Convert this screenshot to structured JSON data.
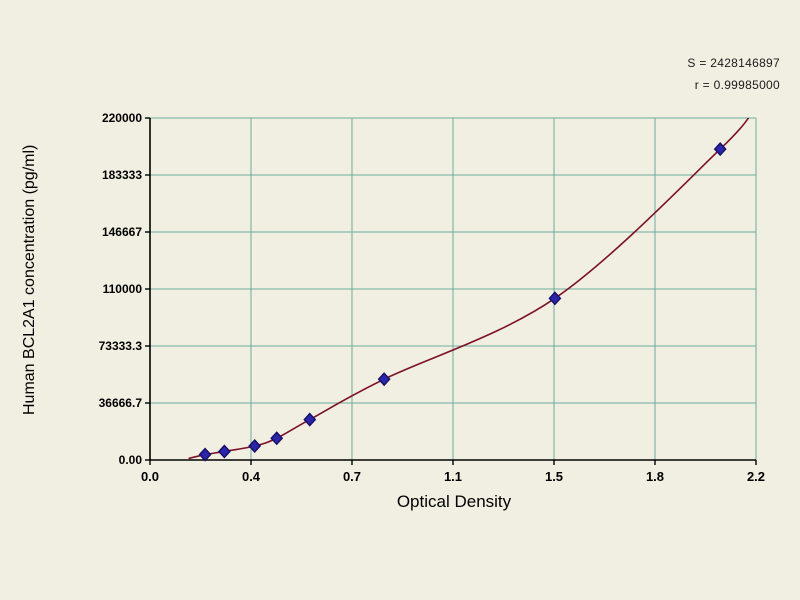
{
  "stats": {
    "line1": "S = 2428146897",
    "line2": "r = 0.99985000"
  },
  "chart_data": {
    "type": "scatter",
    "title": "",
    "xlabel": "Optical Density",
    "ylabel": "Human BCL2A1 concentration (pg/ml)",
    "xlim": [
      0,
      2.2
    ],
    "ylim": [
      0,
      220000
    ],
    "grid": true,
    "legend": "none",
    "x_ticks": [
      {
        "v": 0.0,
        "label": "0.0"
      },
      {
        "v": 0.3667,
        "label": "0.4"
      },
      {
        "v": 0.7333,
        "label": "0.7"
      },
      {
        "v": 1.1,
        "label": "1.1"
      },
      {
        "v": 1.4667,
        "label": "1.5"
      },
      {
        "v": 1.8333,
        "label": "1.8"
      },
      {
        "v": 2.2,
        "label": "2.2"
      }
    ],
    "y_ticks": [
      {
        "v": 0,
        "label": "0.00"
      },
      {
        "v": 36666.7,
        "label": "36666.7"
      },
      {
        "v": 73333.3,
        "label": "73333.3"
      },
      {
        "v": 110000,
        "label": "110000"
      },
      {
        "v": 146667,
        "label": "146667"
      },
      {
        "v": 183333,
        "label": "183333"
      },
      {
        "v": 220000,
        "label": "220000"
      }
    ],
    "points": [
      {
        "x": 0.2,
        "y": 3500
      },
      {
        "x": 0.27,
        "y": 5500
      },
      {
        "x": 0.38,
        "y": 9000
      },
      {
        "x": 0.46,
        "y": 14000
      },
      {
        "x": 0.58,
        "y": 26000
      },
      {
        "x": 0.85,
        "y": 52000
      },
      {
        "x": 1.47,
        "y": 104000
      },
      {
        "x": 2.07,
        "y": 200000
      }
    ],
    "curve_start": {
      "x": 0.14,
      "y": 1000
    },
    "curve_end": {
      "x": 2.2,
      "y": 228000
    },
    "colors": {
      "background": "#f1efe2",
      "grid": "#6bac9c",
      "axis": "#000000",
      "curve": "#7c1126",
      "point_fill": "#2b25a8",
      "point_stroke": "#141066",
      "text": "#000000"
    }
  }
}
